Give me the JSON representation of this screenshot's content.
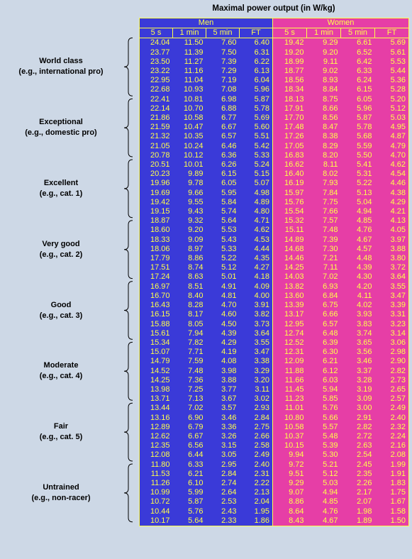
{
  "title": "Maximal power output (in W/kg)",
  "groups": [
    "Men",
    "Women"
  ],
  "columns": [
    "5 s",
    "1 min",
    "5 min",
    "FT"
  ],
  "categories": [
    {
      "line1": "World class",
      "line2": "(e.g., international pro)"
    },
    {
      "line1": "Exceptional",
      "line2": "(e.g., domestic pro)"
    },
    {
      "line1": "Excellent",
      "line2": "(e.g., cat. 1)"
    },
    {
      "line1": "Very good",
      "line2": "(e.g., cat. 2)"
    },
    {
      "line1": "Good",
      "line2": "(e.g., cat. 3)"
    },
    {
      "line1": "Moderate",
      "line2": "(e.g., cat. 4)"
    },
    {
      "line1": "Fair",
      "line2": "(e.g., cat. 5)"
    },
    {
      "line1": "Untrained",
      "line2": "(e.g., non-racer)"
    }
  ],
  "rows": [
    [
      "24.04",
      "11.50",
      "7.60",
      "6.40",
      "19.42",
      "9.29",
      "6.61",
      "5.69"
    ],
    [
      "23.77",
      "11.39",
      "7.50",
      "6.31",
      "19.20",
      "9.20",
      "6.52",
      "5.61"
    ],
    [
      "23.50",
      "11.27",
      "7.39",
      "6.22",
      "18.99",
      "9.11",
      "6.42",
      "5.53"
    ],
    [
      "23.22",
      "11.16",
      "7.29",
      "6.13",
      "18.77",
      "9.02",
      "6.33",
      "5.44"
    ],
    [
      "22.95",
      "11.04",
      "7.19",
      "6.04",
      "18.56",
      "8.93",
      "6.24",
      "5.36"
    ],
    [
      "22.68",
      "10.93",
      "7.08",
      "5.96",
      "18.34",
      "8.84",
      "6.15",
      "5.28"
    ],
    [
      "22.41",
      "10.81",
      "6.98",
      "5.87",
      "18.13",
      "8.75",
      "6.05",
      "5.20"
    ],
    [
      "22.14",
      "10.70",
      "6.88",
      "5.78",
      "17.91",
      "8.66",
      "5.96",
      "5.12"
    ],
    [
      "21.86",
      "10.58",
      "6.77",
      "5.69",
      "17.70",
      "8.56",
      "5.87",
      "5.03"
    ],
    [
      "21.59",
      "10.47",
      "6.67",
      "5.60",
      "17.48",
      "8.47",
      "5.78",
      "4.95"
    ],
    [
      "21.32",
      "10.35",
      "6.57",
      "5.51",
      "17.26",
      "8.38",
      "5.68",
      "4.87"
    ],
    [
      "21.05",
      "10.24",
      "6.46",
      "5.42",
      "17.05",
      "8.29",
      "5.59",
      "4.79"
    ],
    [
      "20.78",
      "10.12",
      "6.36",
      "5.33",
      "16.83",
      "8.20",
      "5.50",
      "4.70"
    ],
    [
      "20.51",
      "10.01",
      "6.26",
      "5.24",
      "16.62",
      "8.11",
      "5.41",
      "4.62"
    ],
    [
      "20.23",
      "9.89",
      "6.15",
      "5.15",
      "16.40",
      "8.02",
      "5.31",
      "4.54"
    ],
    [
      "19.96",
      "9.78",
      "6.05",
      "5.07",
      "16.19",
      "7.93",
      "5.22",
      "4.46"
    ],
    [
      "19.69",
      "9.66",
      "5.95",
      "4.98",
      "15.97",
      "7.84",
      "5.13",
      "4.38"
    ],
    [
      "19.42",
      "9.55",
      "5.84",
      "4.89",
      "15.76",
      "7.75",
      "5.04",
      "4.29"
    ],
    [
      "19.15",
      "9.43",
      "5.74",
      "4.80",
      "15.54",
      "7.66",
      "4.94",
      "4.21"
    ],
    [
      "18.87",
      "9.32",
      "5.64",
      "4.71",
      "15.32",
      "7.57",
      "4.85",
      "4.13"
    ],
    [
      "18.60",
      "9.20",
      "5.53",
      "4.62",
      "15.11",
      "7.48",
      "4.76",
      "4.05"
    ],
    [
      "18.33",
      "9.09",
      "5.43",
      "4.53",
      "14.89",
      "7.39",
      "4.67",
      "3.97"
    ],
    [
      "18.06",
      "8.97",
      "5.33",
      "4.44",
      "14.68",
      "7.30",
      "4.57",
      "3.88"
    ],
    [
      "17.79",
      "8.86",
      "5.22",
      "4.35",
      "14.46",
      "7.21",
      "4.48",
      "3.80"
    ],
    [
      "17.51",
      "8.74",
      "5.12",
      "4.27",
      "14.25",
      "7.11",
      "4.39",
      "3.72"
    ],
    [
      "17.24",
      "8.63",
      "5.01",
      "4.18",
      "14.03",
      "7.02",
      "4.30",
      "3.64"
    ],
    [
      "16.97",
      "8.51",
      "4.91",
      "4.09",
      "13.82",
      "6.93",
      "4.20",
      "3.55"
    ],
    [
      "16.70",
      "8.40",
      "4.81",
      "4.00",
      "13.60",
      "6.84",
      "4.11",
      "3.47"
    ],
    [
      "16.43",
      "8.28",
      "4.70",
      "3.91",
      "13.39",
      "6.75",
      "4.02",
      "3.39"
    ],
    [
      "16.15",
      "8.17",
      "4.60",
      "3.82",
      "13.17",
      "6.66",
      "3.93",
      "3.31"
    ],
    [
      "15.88",
      "8.05",
      "4.50",
      "3.73",
      "12.95",
      "6.57",
      "3.83",
      "3.23"
    ],
    [
      "15.61",
      "7.94",
      "4.39",
      "3.64",
      "12.74",
      "6.48",
      "3.74",
      "3.14"
    ],
    [
      "15.34",
      "7.82",
      "4.29",
      "3.55",
      "12.52",
      "6.39",
      "3.65",
      "3.06"
    ],
    [
      "15.07",
      "7.71",
      "4.19",
      "3.47",
      "12.31",
      "6.30",
      "3.56",
      "2.98"
    ],
    [
      "14.79",
      "7.59",
      "4.08",
      "3.38",
      "12.09",
      "6.21",
      "3.46",
      "2.90"
    ],
    [
      "14.52",
      "7.48",
      "3.98",
      "3.29",
      "11.88",
      "6.12",
      "3.37",
      "2.82"
    ],
    [
      "14.25",
      "7.36",
      "3.88",
      "3.20",
      "11.66",
      "6.03",
      "3.28",
      "2.73"
    ],
    [
      "13.98",
      "7.25",
      "3.77",
      "3.11",
      "11.45",
      "5.94",
      "3.19",
      "2.65"
    ],
    [
      "13.71",
      "7.13",
      "3.67",
      "3.02",
      "11.23",
      "5.85",
      "3.09",
      "2.57"
    ],
    [
      "13.44",
      "7.02",
      "3.57",
      "2.93",
      "11.01",
      "5.76",
      "3.00",
      "2.49"
    ],
    [
      "13.16",
      "6.90",
      "3.46",
      "2.84",
      "10.80",
      "5.66",
      "2.91",
      "2.40"
    ],
    [
      "12.89",
      "6.79",
      "3.36",
      "2.75",
      "10.58",
      "5.57",
      "2.82",
      "2.32"
    ],
    [
      "12.62",
      "6.67",
      "3.26",
      "2.66",
      "10.37",
      "5.48",
      "2.72",
      "2.24"
    ],
    [
      "12.35",
      "6.56",
      "3.15",
      "2.58",
      "10.15",
      "5.39",
      "2.63",
      "2.16"
    ],
    [
      "12.08",
      "6.44",
      "3.05",
      "2.49",
      "9.94",
      "5.30",
      "2.54",
      "2.08"
    ],
    [
      "11.80",
      "6.33",
      "2.95",
      "2.40",
      "9.72",
      "5.21",
      "2.45",
      "1.99"
    ],
    [
      "11.53",
      "6.21",
      "2.84",
      "2.31",
      "9.51",
      "5.12",
      "2.35",
      "1.91"
    ],
    [
      "11.26",
      "6.10",
      "2.74",
      "2.22",
      "9.29",
      "5.03",
      "2.26",
      "1.83"
    ],
    [
      "10.99",
      "5.99",
      "2.64",
      "2.13",
      "9.07",
      "4.94",
      "2.17",
      "1.75"
    ],
    [
      "10.72",
      "5.87",
      "2.53",
      "2.04",
      "8.86",
      "4.85",
      "2.07",
      "1.67"
    ],
    [
      "10.44",
      "5.76",
      "2.43",
      "1.95",
      "8.64",
      "4.76",
      "1.98",
      "1.58"
    ],
    [
      "10.17",
      "5.64",
      "2.33",
      "1.86",
      "8.43",
      "4.67",
      "1.89",
      "1.50"
    ]
  ]
}
